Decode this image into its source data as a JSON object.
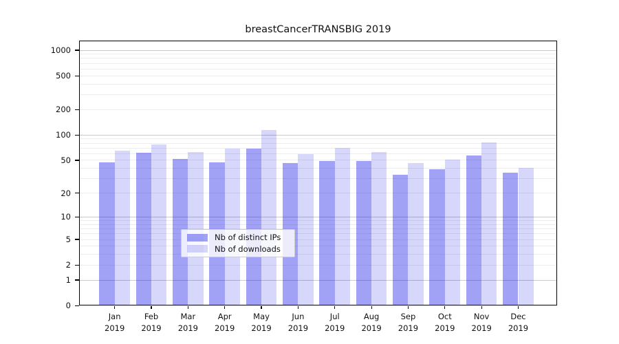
{
  "title": "breastCancerTRANSBIG 2019",
  "chart_data": {
    "type": "bar",
    "title": "breastCancerTRANSBIG 2019",
    "categories": [
      "Jan",
      "Feb",
      "Mar",
      "Apr",
      "May",
      "Jun",
      "Jul",
      "Aug",
      "Sep",
      "Oct",
      "Nov",
      "Dec"
    ],
    "x_year": "2019",
    "series": [
      {
        "name": "Nb of distinct IPs",
        "color": "rgba(0,0,230,0.37)",
        "values": [
          47,
          61,
          52,
          47,
          68,
          46,
          49,
          49,
          33,
          39,
          57,
          35
        ]
      },
      {
        "name": "Nb of downloads",
        "color": "rgba(0,0,230,0.155)",
        "values": [
          65,
          77,
          62,
          68,
          115,
          59,
          70,
          62,
          46,
          51,
          81,
          40
        ]
      }
    ],
    "yscale": "log1p",
    "y_ticks": [
      0,
      1,
      2,
      5,
      10,
      20,
      50,
      100,
      200,
      500,
      1000
    ],
    "y_tick_labels": [
      "0",
      "1",
      "2",
      "5",
      "10",
      "20",
      "50",
      "100",
      "200",
      "500",
      "1000"
    ],
    "ylim": [
      0,
      1080
    ],
    "grid": true,
    "legend_position": "lower center",
    "xlabel": "",
    "ylabel": ""
  },
  "colors": {
    "bar_ips": "rgba(0,0,230,0.37)",
    "bar_downloads": "rgba(0,0,230,0.155)",
    "grid_major": "#c9c9c9",
    "grid_minor": "#ededed",
    "spine": "#000000",
    "text": "#111111",
    "legend_border": "#cccccc"
  }
}
